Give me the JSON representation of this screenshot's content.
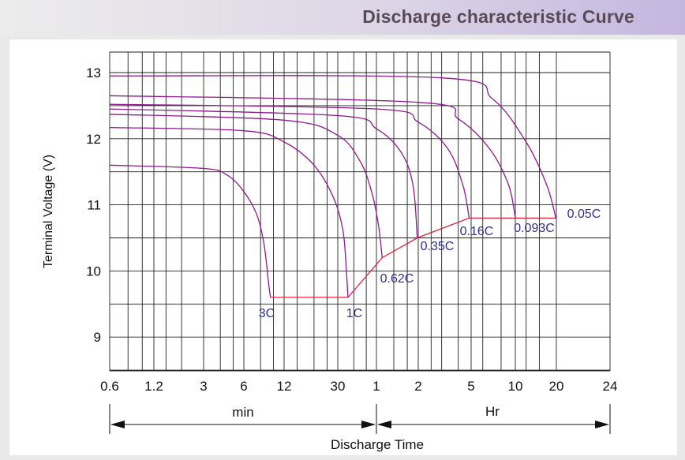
{
  "page": {
    "title": "Discharge characteristic Curve"
  },
  "chart_data": {
    "type": "line",
    "title": "Discharge characteristic Curve",
    "ylabel": "Terminal Voltage  (V)",
    "xlabel": "Discharge Time",
    "ylim": [
      8.6,
      13.3
    ],
    "yticks": [
      9,
      10,
      11,
      12,
      13
    ],
    "x_scale": "log",
    "x_ticks": [
      "0.6",
      "1.2",
      "3",
      "6",
      "12",
      "30",
      "1",
      "2",
      "5",
      "10",
      "20",
      "24"
    ],
    "x_units": {
      "min_label": "min",
      "hr_label": "Hr"
    },
    "grid": true,
    "colors": {
      "curve": "#8e1a8e",
      "cutoff": "#e4203a",
      "label": "#2e3192",
      "grid": "#222222"
    },
    "series": [
      {
        "name": "3C",
        "points": [
          [
            0.6,
            11.6
          ],
          [
            3,
            11.55
          ],
          [
            4.5,
            11.45
          ],
          [
            6,
            11.2
          ],
          [
            7.5,
            10.85
          ],
          [
            8.5,
            10.4
          ],
          [
            9.2,
            9.8
          ],
          [
            9.5,
            9.6
          ]
        ]
      },
      {
        "name": "1C",
        "points": [
          [
            0.6,
            12.17
          ],
          [
            6,
            12.12
          ],
          [
            12,
            11.95
          ],
          [
            20,
            11.6
          ],
          [
            28,
            11.1
          ],
          [
            33,
            10.6
          ],
          [
            35,
            10.0
          ],
          [
            36,
            9.6
          ]
        ]
      },
      {
        "name": "0.62C",
        "points": [
          [
            0.6,
            12.37
          ],
          [
            12,
            12.28
          ],
          [
            30,
            12.05
          ],
          [
            45,
            11.65
          ],
          [
            55,
            11.2
          ],
          [
            62,
            10.7
          ],
          [
            66,
            10.2
          ]
        ]
      },
      {
        "name": "0.35C",
        "points": [
          [
            0.6,
            12.45
          ],
          [
            30,
            12.35
          ],
          [
            60,
            12.15
          ],
          [
            90,
            11.8
          ],
          [
            110,
            11.3
          ],
          [
            118,
            10.5
          ]
        ]
      },
      {
        "name": "0.16C",
        "points": [
          [
            0.6,
            12.52
          ],
          [
            60,
            12.45
          ],
          [
            120,
            12.25
          ],
          [
            200,
            11.85
          ],
          [
            260,
            11.3
          ],
          [
            290,
            10.8
          ]
        ]
      },
      {
        "name": "0.093C",
        "points": [
          [
            0.6,
            12.65
          ],
          [
            120,
            12.55
          ],
          [
            240,
            12.3
          ],
          [
            400,
            11.85
          ],
          [
            540,
            11.3
          ],
          [
            600,
            10.8
          ]
        ]
      },
      {
        "name": "0.05C",
        "points": [
          [
            0.6,
            12.95
          ],
          [
            180,
            12.92
          ],
          [
            420,
            12.6
          ],
          [
            720,
            11.95
          ],
          [
            1020,
            11.3
          ],
          [
            1190,
            10.8
          ]
        ]
      }
    ],
    "cutoff_line": [
      [
        9.5,
        9.6
      ],
      [
        36,
        9.6
      ],
      [
        66,
        10.2
      ],
      [
        118,
        10.5
      ],
      [
        290,
        10.8
      ],
      [
        1190,
        10.8
      ]
    ]
  }
}
